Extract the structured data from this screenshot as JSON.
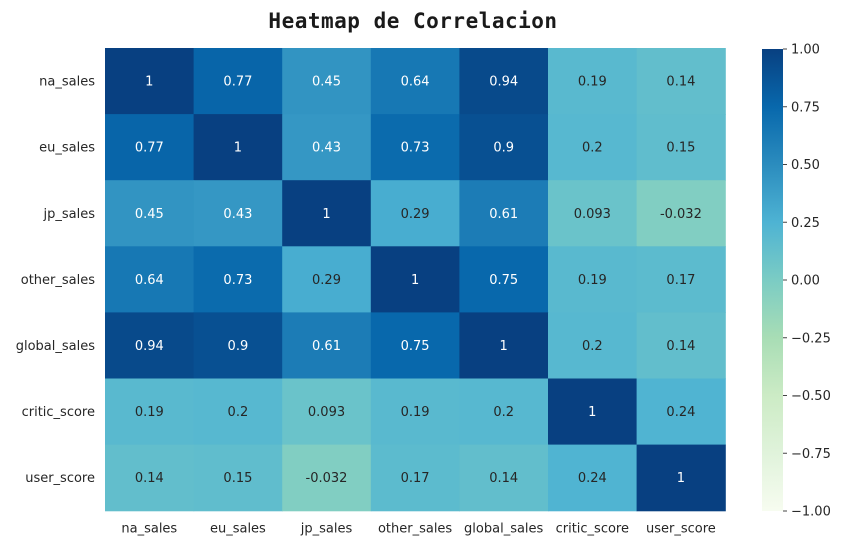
{
  "chart_data": {
    "type": "heatmap",
    "title": "Heatmap de Correlacion",
    "row_labels": [
      "na_sales",
      "eu_sales",
      "jp_sales",
      "other_sales",
      "global_sales",
      "critic_score",
      "user_score"
    ],
    "col_labels": [
      "na_sales",
      "eu_sales",
      "jp_sales",
      "other_sales",
      "global_sales",
      "critic_score",
      "user_score"
    ],
    "values": [
      [
        1,
        0.77,
        0.45,
        0.64,
        0.94,
        0.19,
        0.14
      ],
      [
        0.77,
        1,
        0.43,
        0.73,
        0.9,
        0.2,
        0.15
      ],
      [
        0.45,
        0.43,
        1,
        0.29,
        0.61,
        0.093,
        -0.032
      ],
      [
        0.64,
        0.73,
        0.29,
        1,
        0.75,
        0.19,
        0.17
      ],
      [
        0.94,
        0.9,
        0.61,
        0.75,
        1,
        0.2,
        0.14
      ],
      [
        0.19,
        0.2,
        0.093,
        0.19,
        0.2,
        1,
        0.24
      ],
      [
        0.14,
        0.15,
        -0.032,
        0.17,
        0.14,
        0.24,
        1
      ]
    ],
    "cell_text": [
      [
        "1",
        "0.77",
        "0.45",
        "0.64",
        "0.94",
        "0.19",
        "0.14"
      ],
      [
        "0.77",
        "1",
        "0.43",
        "0.73",
        "0.9",
        "0.2",
        "0.15"
      ],
      [
        "0.45",
        "0.43",
        "1",
        "0.29",
        "0.61",
        "0.093",
        "-0.032"
      ],
      [
        "0.64",
        "0.73",
        "0.29",
        "1",
        "0.75",
        "0.19",
        "0.17"
      ],
      [
        "0.94",
        "0.9",
        "0.61",
        "0.75",
        "1",
        "0.2",
        "0.14"
      ],
      [
        "0.19",
        "0.2",
        "0.093",
        "0.19",
        "0.2",
        "1",
        "0.24"
      ],
      [
        "0.14",
        "0.15",
        "-0.032",
        "0.17",
        "0.14",
        "0.24",
        "1"
      ]
    ],
    "vmin": -1,
    "vmax": 1,
    "colormap": "GnBu",
    "colormap_stops": [
      "#f7fcf0",
      "#e0f3db",
      "#ccebc5",
      "#a8ddb5",
      "#7bccc4",
      "#4eb3d3",
      "#2b8cbe",
      "#0868ac",
      "#084081"
    ],
    "colorbar_ticks": [
      1.0,
      0.75,
      0.5,
      0.25,
      0.0,
      -0.25,
      -0.5,
      -0.75,
      -1.0
    ],
    "colorbar_tick_labels": [
      "1.00",
      "0.75",
      "0.50",
      "0.25",
      "0.00",
      "−0.25",
      "−0.50",
      "−0.75",
      "−1.00"
    ],
    "annotation_colors": {
      "dark": "#262626",
      "light": "#ffffff"
    }
  }
}
